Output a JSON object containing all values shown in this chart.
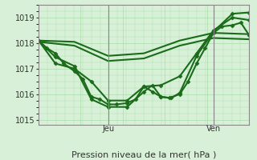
{
  "bg_color": "#d8f0d8",
  "grid_color": "#aaddaa",
  "line_color": "#1a6b1a",
  "marker_color": "#1a6b1a",
  "xlabel": "Pression niveau de la mer( hPa )",
  "xlabel_fontsize": 8,
  "ylim": [
    1014.8,
    1019.5
  ],
  "yticks": [
    1015,
    1016,
    1017,
    1018,
    1019
  ],
  "day_labels": [
    "Jeu",
    "Ven"
  ],
  "day_positions": [
    0.33,
    0.83
  ],
  "series": [
    {
      "x": [
        0.0,
        0.04,
        0.08,
        0.12,
        0.17,
        0.21,
        0.25,
        0.29,
        0.33,
        0.37,
        0.42,
        0.46,
        0.5,
        0.54,
        0.58,
        0.62,
        0.67,
        0.71,
        0.75,
        0.79,
        0.83,
        0.87,
        0.92,
        0.96,
        1.0
      ],
      "y": [
        1018.1,
        1017.8,
        1017.6,
        1017.2,
        1016.9,
        1016.6,
        1015.9,
        1015.8,
        1015.6,
        1015.6,
        1015.65,
        1015.8,
        1016.3,
        1016.1,
        1015.9,
        1015.85,
        1016.0,
        1016.5,
        1017.2,
        1017.8,
        1018.4,
        1018.65,
        1018.7,
        1018.8,
        1018.3
      ],
      "lw": 1.5,
      "marker": "D",
      "ms": 2.5
    },
    {
      "x": [
        0.0,
        0.08,
        0.17,
        0.25,
        0.33,
        0.42,
        0.5,
        0.54,
        0.58,
        0.63,
        0.67,
        0.75,
        0.83,
        0.92,
        1.0
      ],
      "y": [
        1018.1,
        1017.45,
        1017.1,
        1015.8,
        1015.5,
        1015.5,
        1016.1,
        1016.35,
        1015.9,
        1015.85,
        1016.05,
        1017.5,
        1018.45,
        1019.15,
        1019.2
      ],
      "lw": 1.5,
      "marker": "D",
      "ms": 2.5
    },
    {
      "x": [
        0.0,
        0.08,
        0.17,
        0.25,
        0.33,
        0.42,
        0.5,
        0.58,
        0.67,
        0.75,
        0.83,
        0.92,
        1.0
      ],
      "y": [
        1018.1,
        1017.2,
        1017.0,
        1016.5,
        1015.75,
        1015.75,
        1016.3,
        1016.35,
        1016.7,
        1017.6,
        1018.5,
        1019.0,
        1018.9
      ],
      "lw": 1.5,
      "marker": "D",
      "ms": 2.5
    },
    {
      "x": [
        0.0,
        0.17,
        0.33,
        0.5,
        0.67,
        0.83,
        1.0
      ],
      "y": [
        1018.1,
        1018.05,
        1017.5,
        1017.6,
        1018.1,
        1018.4,
        1018.35
      ],
      "lw": 1.5,
      "marker": null,
      "ms": 0
    },
    {
      "x": [
        0.0,
        0.17,
        0.33,
        0.5,
        0.67,
        0.83,
        1.0
      ],
      "y": [
        1018.05,
        1017.9,
        1017.3,
        1017.4,
        1017.9,
        1018.2,
        1018.15
      ],
      "lw": 1.5,
      "marker": null,
      "ms": 0
    }
  ]
}
